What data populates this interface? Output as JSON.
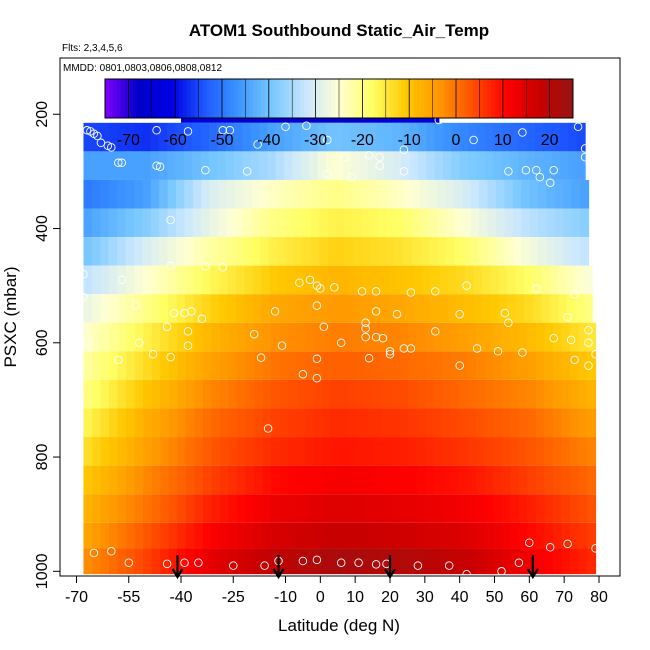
{
  "chart_data": {
    "type": "heatmap",
    "title": "ATOM1 Southbound Static_Air_Temp",
    "flights_note": "Flts: 2,3,4,5,6",
    "dates_note": "MMDD: 0801,0803,0806,0808,0812",
    "xlabel": "Latitude (deg N)",
    "ylabel": "PSXC (mbar)",
    "xlim": [
      -70,
      80
    ],
    "ylim": [
      1000,
      0
    ],
    "x_tick_labels": [
      "-70",
      "-55",
      "-40",
      "-25",
      "-10",
      "0",
      "10",
      "20",
      "30",
      "40",
      "50",
      "60",
      "70",
      "80"
    ],
    "x_ticks": [
      -70,
      -55,
      -40,
      -25,
      -10,
      0,
      10,
      20,
      30,
      40,
      50,
      60,
      70,
      80
    ],
    "y_tick_labels": [
      "200",
      "400",
      "600",
      "800",
      "1000"
    ],
    "y_ticks": [
      200,
      400,
      600,
      800,
      1000
    ],
    "colorbar": {
      "range": [
        -75,
        25
      ],
      "tick_labels": [
        "-70",
        "-60",
        "-50",
        "-40",
        "-30",
        "-20",
        "-10",
        "0",
        "10",
        "20"
      ],
      "ticks": [
        -70,
        -60,
        -50,
        -40,
        -30,
        -20,
        -10,
        0,
        10,
        20
      ],
      "colors": [
        "#8000ff",
        "#0000c8",
        "#0000e6",
        "#1e5aff",
        "#3c96ff",
        "#78c8ff",
        "#c8e6ff",
        "#ffffd2",
        "#ffff64",
        "#ffc800",
        "#ff9600",
        "#ff5000",
        "#ff0000",
        "#c80000",
        "#961414"
      ]
    },
    "layers": [
      {
        "p_top": 165,
        "p_bot": 215,
        "lat_start": -40,
        "lat_end": 34,
        "temps": [
          -63,
          -64,
          -65,
          -66,
          -66,
          -65,
          -64,
          -64
        ]
      },
      {
        "p_top": 215,
        "p_bot": 265,
        "lat_start": -68,
        "lat_end": 76,
        "temps": [
          -55,
          -57,
          -52,
          -45,
          -40,
          -42,
          -48,
          -52,
          -55
        ]
      },
      {
        "p_top": 265,
        "p_bot": 315,
        "lat_start": -68,
        "lat_end": 76,
        "temps": [
          -45,
          -45,
          -40,
          -35,
          -25,
          -30,
          -38,
          -42,
          -45
        ]
      },
      {
        "p_top": 315,
        "p_bot": 365,
        "lat_start": -68,
        "lat_end": 77,
        "temps": [
          -50,
          -45,
          -30,
          -24,
          -20,
          -24,
          -30,
          -40,
          -45
        ]
      },
      {
        "p_top": 365,
        "p_bot": 415,
        "lat_start": -68,
        "lat_end": 77,
        "temps": [
          -45,
          -38,
          -28,
          -20,
          -16,
          -18,
          -25,
          -33,
          -38
        ]
      },
      {
        "p_top": 415,
        "p_bot": 465,
        "lat_start": -68,
        "lat_end": 77,
        "temps": [
          -40,
          -30,
          -22,
          -16,
          -12,
          -14,
          -18,
          -26,
          -33
        ]
      },
      {
        "p_top": 465,
        "p_bot": 515,
        "lat_start": -68,
        "lat_end": 78,
        "temps": [
          -33,
          -25,
          -17,
          -11,
          -8,
          -10,
          -13,
          -18,
          -26
        ]
      },
      {
        "p_top": 515,
        "p_bot": 565,
        "lat_start": -68,
        "lat_end": 78,
        "temps": [
          -28,
          -20,
          -12,
          -6,
          -4,
          -6,
          -9,
          -13,
          -20
        ]
      },
      {
        "p_top": 565,
        "p_bot": 615,
        "lat_start": -68,
        "lat_end": 79,
        "temps": [
          -25,
          -16,
          -8,
          -3,
          -1,
          -2,
          -5,
          -9,
          -15
        ]
      },
      {
        "p_top": 615,
        "p_bot": 665,
        "lat_start": -68,
        "lat_end": 79,
        "temps": [
          -22,
          -13,
          -5,
          0,
          2,
          1,
          -1,
          -5,
          -11
        ]
      },
      {
        "p_top": 665,
        "p_bot": 715,
        "lat_start": -68,
        "lat_end": 79,
        "temps": [
          -20,
          -10,
          -2,
          3,
          5,
          4,
          1,
          -2,
          -8
        ]
      },
      {
        "p_top": 715,
        "p_bot": 765,
        "lat_start": -68,
        "lat_end": 79,
        "temps": [
          -17,
          -7,
          1,
          5,
          7,
          6,
          4,
          1,
          -5
        ]
      },
      {
        "p_top": 765,
        "p_bot": 815,
        "lat_start": -68,
        "lat_end": 79,
        "temps": [
          -14,
          -5,
          3,
          7,
          9,
          8,
          6,
          3,
          -2
        ]
      },
      {
        "p_top": 815,
        "p_bot": 865,
        "lat_start": -68,
        "lat_end": 79,
        "temps": [
          -11,
          -2,
          5,
          10,
          12,
          11,
          9,
          5,
          1
        ]
      },
      {
        "p_top": 865,
        "p_bot": 915,
        "lat_start": -68,
        "lat_end": 79,
        "temps": [
          -8,
          0,
          8,
          13,
          15,
          14,
          12,
          8,
          3
        ]
      },
      {
        "p_top": 915,
        "p_bot": 960,
        "lat_start": -68,
        "lat_end": 79,
        "temps": [
          -6,
          3,
          11,
          16,
          18,
          17,
          15,
          10,
          5
        ]
      },
      {
        "p_top": 960,
        "p_bot": 1005,
        "lat_start": -68,
        "lat_end": 79,
        "temps": [
          -3,
          5,
          14,
          19,
          22,
          21,
          18,
          12,
          7
        ]
      }
    ],
    "points": [
      [
        26,
        183
      ],
      [
        -40,
        198
      ],
      [
        34,
        210
      ],
      [
        -67,
        228
      ],
      [
        -66,
        230
      ],
      [
        -65,
        234
      ],
      [
        -64,
        238
      ],
      [
        -47,
        228
      ],
      [
        -38,
        230
      ],
      [
        -28,
        228
      ],
      [
        -26,
        228
      ],
      [
        -10,
        222
      ],
      [
        -4,
        220
      ],
      [
        2,
        245
      ],
      [
        44,
        245
      ],
      [
        58,
        232
      ],
      [
        74,
        222
      ],
      [
        -63,
        250
      ],
      [
        -61,
        255
      ],
      [
        -60,
        258
      ],
      [
        -18,
        253
      ],
      [
        -58,
        285
      ],
      [
        -57,
        285
      ],
      [
        -47,
        290
      ],
      [
        -46,
        292
      ],
      [
        7,
        275
      ],
      [
        14,
        272
      ],
      [
        17,
        275
      ],
      [
        17,
        290
      ],
      [
        24,
        262
      ],
      [
        54,
        300
      ],
      [
        59,
        298
      ],
      [
        62,
        298
      ],
      [
        63,
        310
      ],
      [
        67,
        298
      ],
      [
        76,
        260
      ],
      [
        76,
        275
      ],
      [
        -33,
        298
      ],
      [
        -21,
        300
      ],
      [
        2,
        305
      ],
      [
        9,
        310
      ],
      [
        24,
        300
      ],
      [
        66,
        320
      ],
      [
        -43,
        385
      ],
      [
        -68,
        480
      ],
      [
        -57,
        490
      ],
      [
        -43,
        465
      ],
      [
        -33,
        466
      ],
      [
        -28,
        468
      ],
      [
        -6,
        495
      ],
      [
        -3,
        490
      ],
      [
        -1,
        500
      ],
      [
        0,
        505
      ],
      [
        4,
        503
      ],
      [
        12,
        510
      ],
      [
        16,
        510
      ],
      [
        26,
        512
      ],
      [
        33,
        510
      ],
      [
        42,
        500
      ],
      [
        62,
        505
      ],
      [
        73,
        515
      ],
      [
        -68,
        520
      ],
      [
        -53,
        535
      ],
      [
        -42,
        548
      ],
      [
        -39,
        548
      ],
      [
        -37,
        545
      ],
      [
        -34,
        558
      ],
      [
        -13,
        545
      ],
      [
        -1,
        535
      ],
      [
        13,
        565
      ],
      [
        16,
        545
      ],
      [
        22,
        550
      ],
      [
        40,
        550
      ],
      [
        53,
        548
      ],
      [
        71,
        555
      ],
      [
        77,
        578
      ],
      [
        -44,
        572
      ],
      [
        -38,
        580
      ],
      [
        -19,
        585
      ],
      [
        1,
        572
      ],
      [
        13,
        575
      ],
      [
        13,
        590
      ],
      [
        16,
        590
      ],
      [
        33,
        580
      ],
      [
        54,
        565
      ],
      [
        67,
        592
      ],
      [
        72,
        595
      ],
      [
        77,
        600
      ],
      [
        -67,
        600
      ],
      [
        -52,
        600
      ],
      [
        -38,
        605
      ],
      [
        -11,
        605
      ],
      [
        6,
        600
      ],
      [
        18,
        592
      ],
      [
        20,
        615
      ],
      [
        24,
        610
      ],
      [
        26,
        610
      ],
      [
        45,
        610
      ],
      [
        51,
        615
      ],
      [
        58,
        617
      ],
      [
        79,
        620
      ],
      [
        -58,
        630
      ],
      [
        -48,
        620
      ],
      [
        -43,
        625
      ],
      [
        -17,
        626
      ],
      [
        -1,
        628
      ],
      [
        14,
        627
      ],
      [
        20,
        620
      ],
      [
        40,
        640
      ],
      [
        73,
        630
      ],
      [
        77,
        640
      ],
      [
        -5,
        655
      ],
      [
        -1,
        662
      ],
      [
        -15,
        750
      ],
      [
        -65,
        968
      ],
      [
        -60,
        965
      ],
      [
        -55,
        985
      ],
      [
        -44,
        987
      ],
      [
        -39,
        985
      ],
      [
        -35,
        985
      ],
      [
        -25,
        990
      ],
      [
        -16,
        990
      ],
      [
        -12,
        982
      ],
      [
        -5,
        982
      ],
      [
        -1,
        980
      ],
      [
        6,
        985
      ],
      [
        11,
        985
      ],
      [
        16,
        988
      ],
      [
        19,
        987
      ],
      [
        28,
        990
      ],
      [
        37,
        990
      ],
      [
        42,
        1005
      ],
      [
        52,
        1000
      ],
      [
        57,
        985
      ],
      [
        60,
        950
      ],
      [
        66,
        958
      ],
      [
        71,
        952
      ],
      [
        79,
        960
      ]
    ],
    "flight_markers": [
      -41,
      -12,
      20,
      61
    ]
  }
}
